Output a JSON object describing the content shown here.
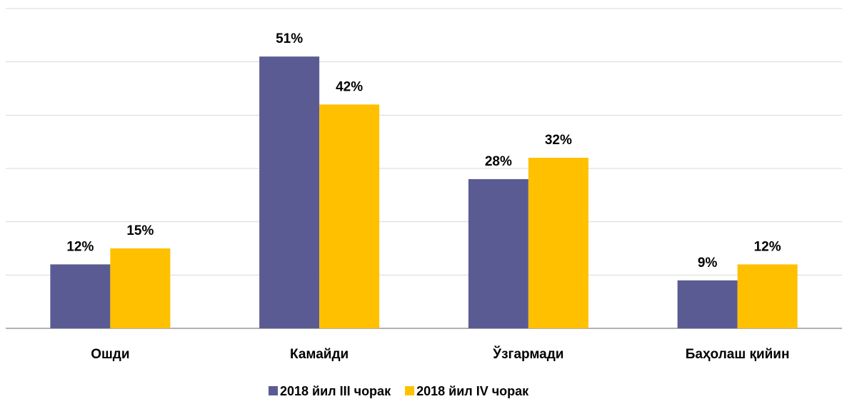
{
  "chart_data": {
    "type": "bar",
    "categories": [
      "Ошди",
      "Камайди",
      "Ўзгармади",
      "Баҳолаш қийин"
    ],
    "series": [
      {
        "name": "2018 йил III чорак",
        "color": "#5b5b94",
        "values": [
          12,
          51,
          28,
          9
        ],
        "value_labels": [
          "12%",
          "51%",
          "28%",
          "9%"
        ]
      },
      {
        "name": "2018 йил IV чорак",
        "color": "#ffc000",
        "values": [
          15,
          42,
          32,
          12
        ],
        "value_labels": [
          "15%",
          "42%",
          "32%",
          "12%"
        ]
      }
    ],
    "ylim": [
      0,
      60
    ],
    "yticks": [
      0,
      10,
      20,
      30,
      40,
      50,
      60
    ],
    "grid": true,
    "legend": "bottom"
  }
}
